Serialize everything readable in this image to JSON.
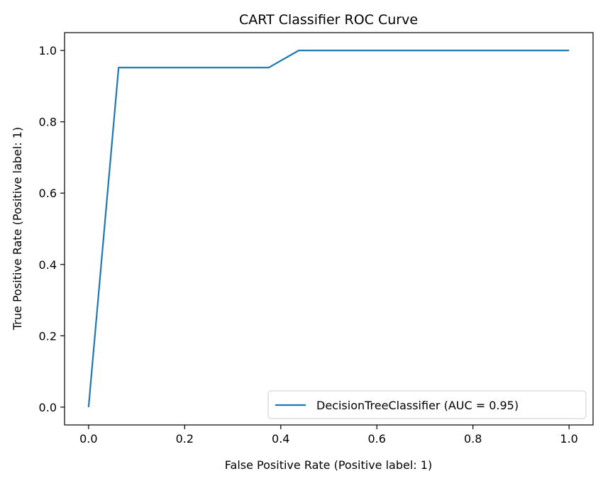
{
  "chart_data": {
    "type": "line",
    "title": "CART Classifier ROC Curve",
    "xlabel": "False Positive Rate (Positive label: 1)",
    "ylabel": "True Positive Rate (Positive label: 1)",
    "xlim": [
      -0.05,
      1.05
    ],
    "ylim": [
      -0.05,
      1.05
    ],
    "xticks": [
      0.0,
      0.2,
      0.4,
      0.6,
      0.8,
      1.0
    ],
    "yticks": [
      0.0,
      0.2,
      0.4,
      0.6,
      0.8,
      1.0
    ],
    "tick_labels_x": [
      "0.0",
      "0.2",
      "0.4",
      "0.6",
      "0.8",
      "1.0"
    ],
    "tick_labels_y": [
      "0.0",
      "0.2",
      "0.4",
      "0.6",
      "0.8",
      "1.0"
    ],
    "grid": false,
    "legend_position": "lower-right",
    "series": [
      {
        "name": "DecisionTreeClassifier (AUC = 0.95)",
        "color": "#1f77b4",
        "x": [
          0.0,
          0.0625,
          0.375,
          0.4375,
          1.0
        ],
        "y": [
          0.0,
          0.952,
          0.952,
          1.0,
          1.0
        ]
      }
    ]
  }
}
